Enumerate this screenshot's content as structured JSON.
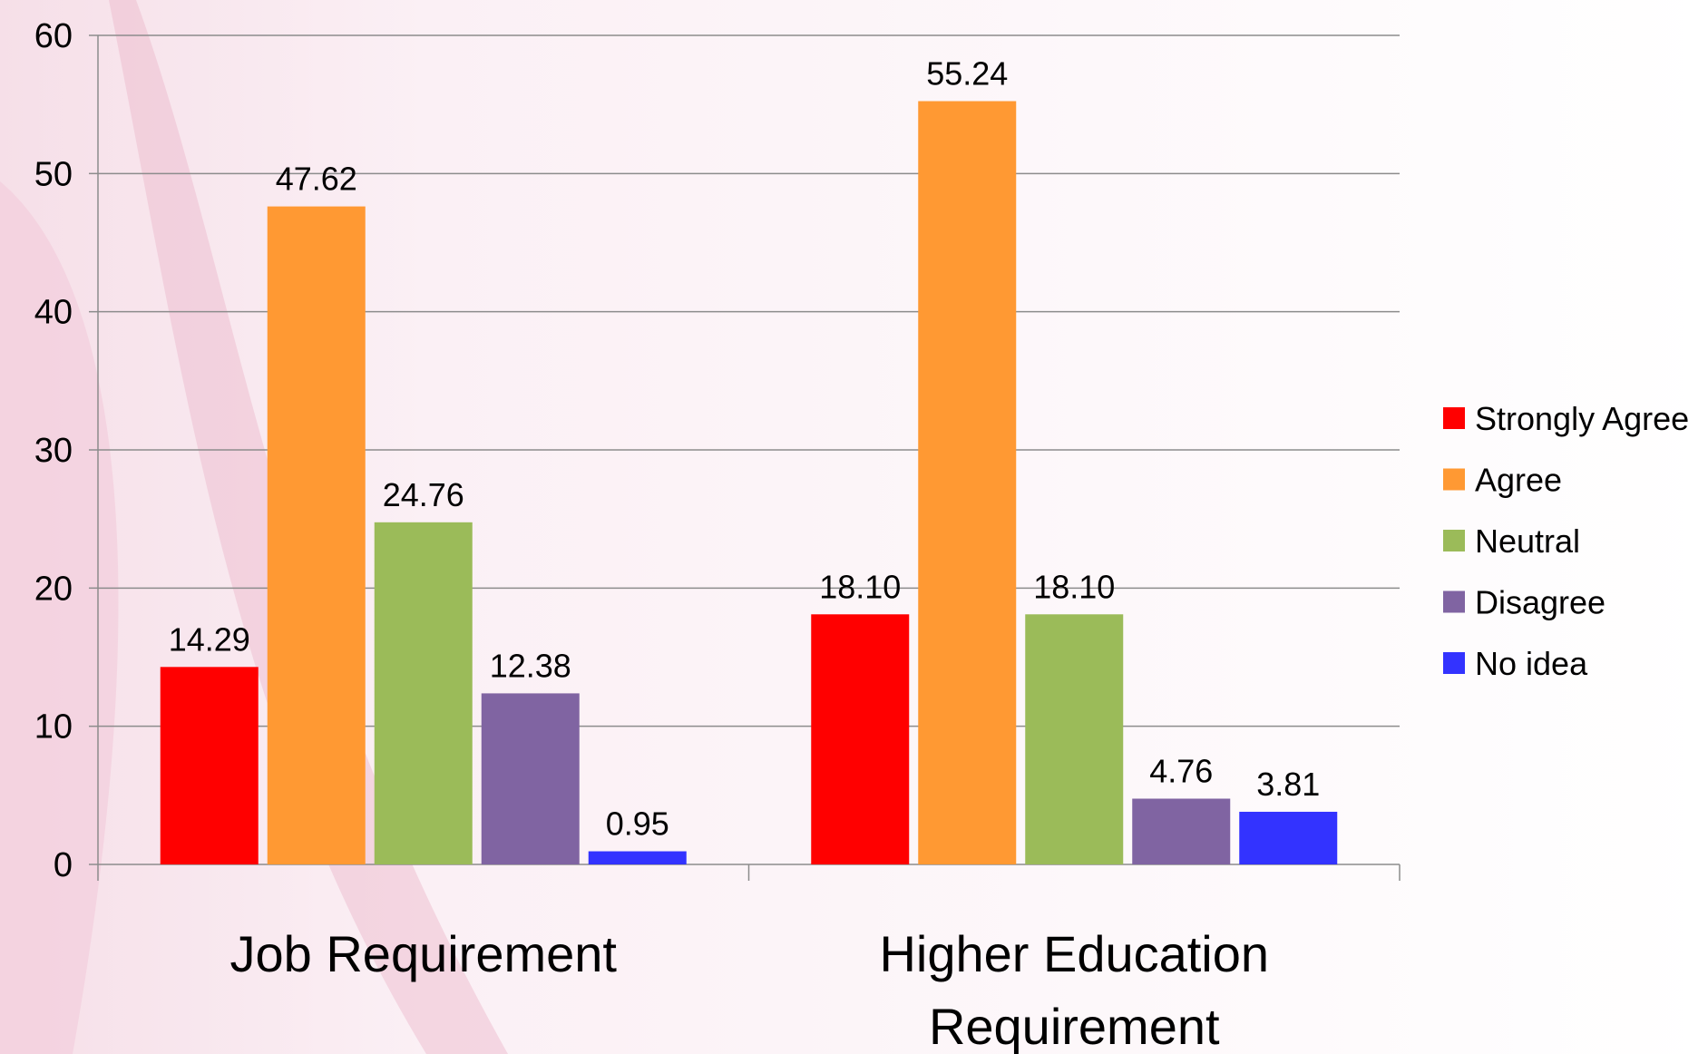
{
  "chart_data": {
    "type": "bar",
    "categories": [
      [
        "Job Requirement"
      ],
      [
        "Higher Education",
        "Requirement"
      ]
    ],
    "series": [
      {
        "name": "Strongly Agree",
        "values": [
          14.29,
          18.1
        ],
        "labels": [
          "14.29",
          "18.10"
        ],
        "color": "#ff0000"
      },
      {
        "name": "Agree",
        "values": [
          47.62,
          55.24
        ],
        "labels": [
          "47.62",
          "55.24"
        ],
        "color": "#ff9933"
      },
      {
        "name": "Neutral",
        "values": [
          24.76,
          18.1
        ],
        "labels": [
          "24.76",
          "18.10"
        ],
        "color": "#9bbb59"
      },
      {
        "name": "Disagree",
        "values": [
          12.38,
          4.76
        ],
        "labels": [
          "12.38",
          "4.76"
        ],
        "color": "#8064a2"
      },
      {
        "name": "No idea",
        "values": [
          0.95,
          3.81
        ],
        "labels": [
          "0.95",
          "3.81"
        ],
        "color": "#3333ff"
      }
    ],
    "yticks": [
      "0",
      "10",
      "20",
      "30",
      "40",
      "50",
      "60"
    ],
    "ylim": [
      0,
      60
    ],
    "grid": true,
    "legend": "right",
    "title": "",
    "xlabel": "",
    "ylabel": ""
  }
}
